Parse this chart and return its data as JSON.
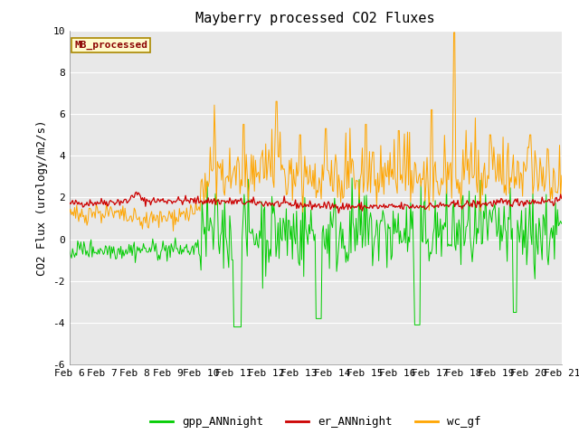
{
  "title": "Mayberry processed CO2 Fluxes",
  "ylabel": "CO2 Flux (urology/m2/s)",
  "ylim": [
    -6,
    10
  ],
  "yticks": [
    -6,
    -4,
    -2,
    0,
    2,
    4,
    6,
    8,
    10
  ],
  "xtick_labels": [
    "Feb 6",
    "Feb 7",
    "Feb 8",
    "Feb 9",
    "Feb 10",
    "Feb 11",
    "Feb 12",
    "Feb 13",
    "Feb 14",
    "Feb 15",
    "Feb 16",
    "Feb 17",
    "Feb 18",
    "Feb 19",
    "Feb 20",
    "Feb 21"
  ],
  "legend_label": "MB_processed",
  "legend_label_color": "#8B0000",
  "legend_box_color": "#FFFACD",
  "line_gpp_color": "#00CC00",
  "line_er_color": "#CC0000",
  "line_wc_color": "#FFA500",
  "bg_color": "#E8E8E8",
  "fig_bg_color": "#FFFFFF",
  "title_fontsize": 11,
  "axis_fontsize": 9,
  "tick_fontsize": 8,
  "legend_bottom_labels": [
    "gpp_ANNnight",
    "er_ANNnight",
    "wc_gf"
  ],
  "legend_bottom_colors": [
    "#00CC00",
    "#CC0000",
    "#FFA500"
  ],
  "seed": 42
}
